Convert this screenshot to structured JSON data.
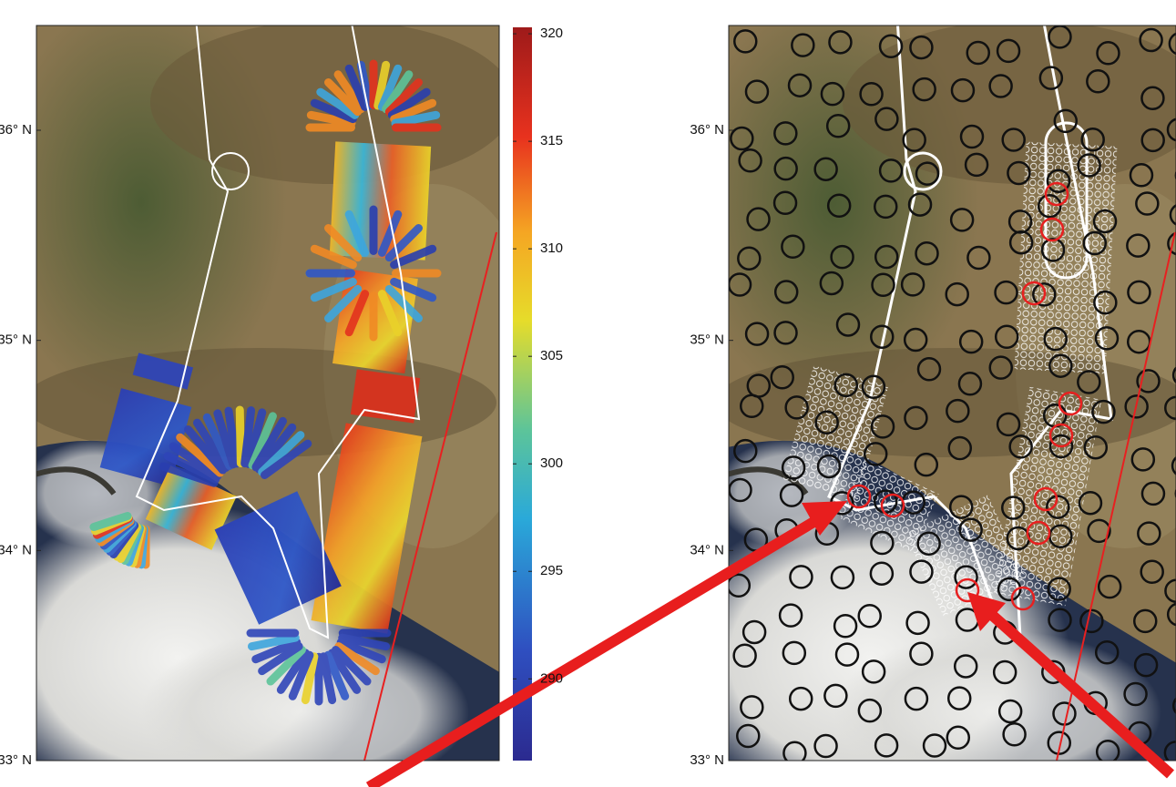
{
  "colorbar": {
    "lim": [
      286.2,
      320.3
    ],
    "ticks": [
      290,
      295,
      300,
      305,
      310,
      315,
      320
    ]
  },
  "left_map": {
    "lat_ticks": [
      {
        "value": 36,
        "label": "36° N"
      },
      {
        "value": 35,
        "label": "35° N"
      },
      {
        "value": 34,
        "label": "34° N"
      },
      {
        "value": 33,
        "label": "33° N"
      }
    ]
  },
  "right_map": {
    "lat_ticks": [
      {
        "value": 36,
        "label": "36° N"
      },
      {
        "value": 35,
        "label": "35° N"
      },
      {
        "value": 34,
        "label": "34° N"
      },
      {
        "value": 33,
        "label": "33° N"
      }
    ]
  }
}
